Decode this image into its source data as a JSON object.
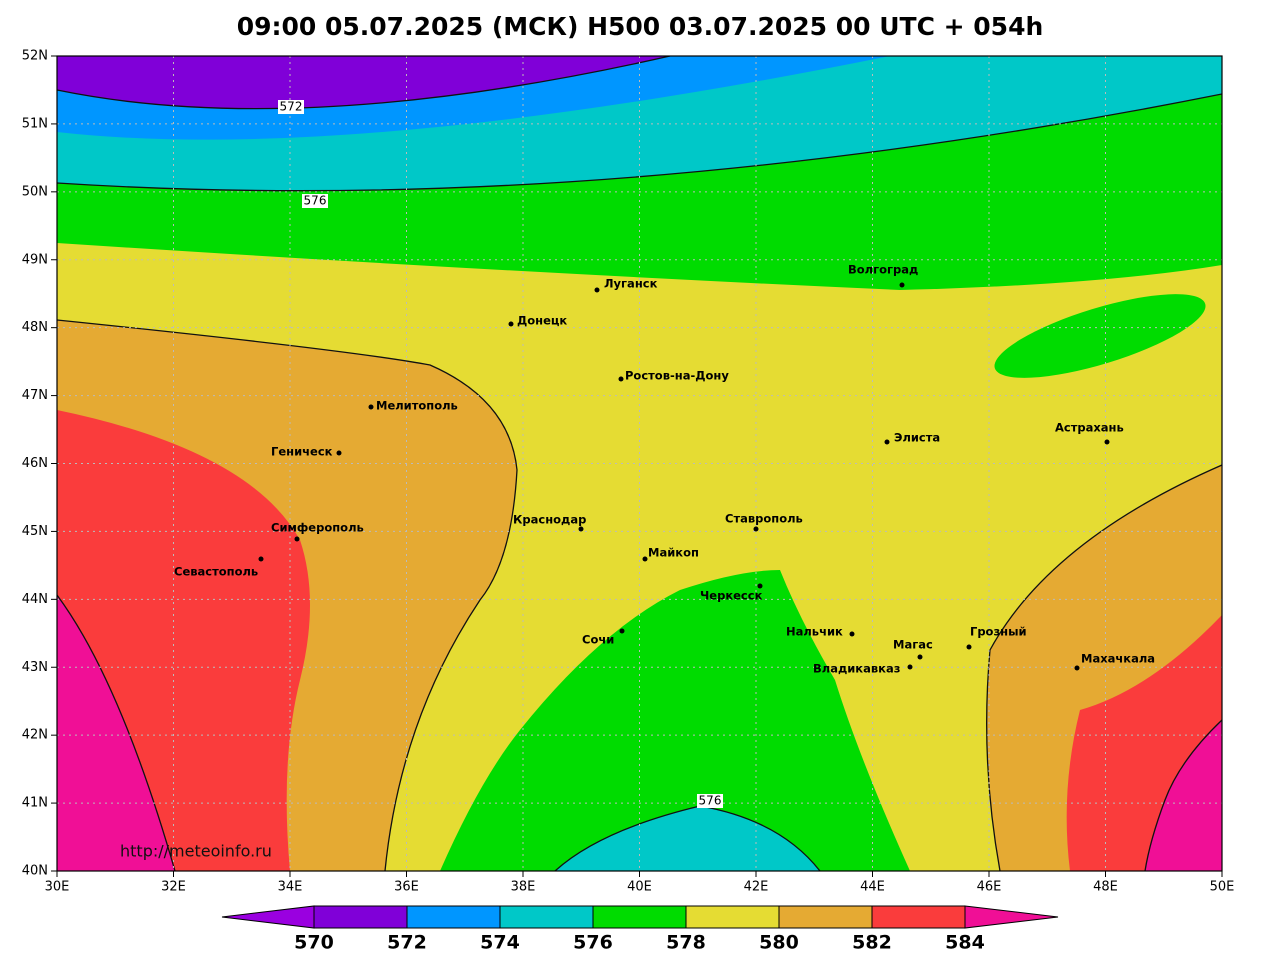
{
  "title": "09:00 05.07.2025 (МСК) H500  03.07.2025 00 UTC + 054h",
  "lat_ticks": [
    "52N",
    "51N",
    "50N",
    "49N",
    "48N",
    "47N",
    "46N",
    "45N",
    "44N",
    "43N",
    "42N",
    "41N",
    "40N"
  ],
  "lon_ticks": [
    "30E",
    "32E",
    "34E",
    "36E",
    "38E",
    "40E",
    "42E",
    "44E",
    "46E",
    "48E",
    "50E"
  ],
  "cities": [
    "Волгоград",
    "Луганск",
    "Донецк",
    "Ростов-на-Дону",
    "Мелитополь",
    "Геническ",
    "Элиста",
    "Астрахань",
    "Симферополь",
    "Севастополь",
    "Краснодар",
    "Ставрополь",
    "Майкоп",
    "Черкесск",
    "Нальчик",
    "Магас",
    "Грозный",
    "Владикавказ",
    "Сочи",
    "Махачкала"
  ],
  "contour_labels": [
    "572",
    "576",
    "576"
  ],
  "colorbar": {
    "ticks": [
      570,
      572,
      574,
      576,
      578,
      580,
      582,
      584
    ]
  },
  "credit": "http://meteoinfo.ru"
}
